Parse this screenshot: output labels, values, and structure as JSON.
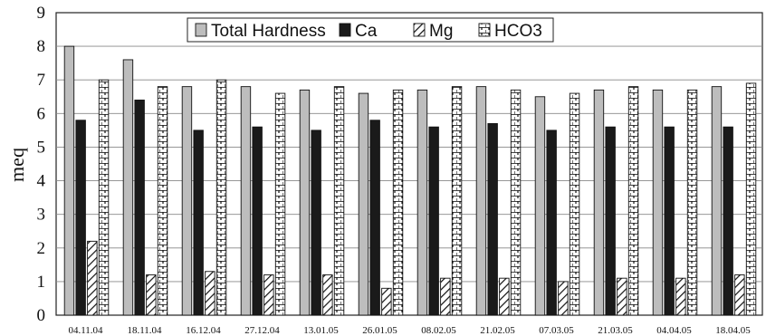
{
  "chart_data": {
    "type": "bar",
    "ylabel": "meq",
    "xlabel": "",
    "ylim": [
      0,
      9
    ],
    "yticks": [
      0,
      1,
      2,
      3,
      4,
      5,
      6,
      7,
      8,
      9
    ],
    "grid": "horizontal",
    "legend_position": "top-center",
    "categories": [
      "04.11.04",
      "18.11.04",
      "16.12.04",
      "27.12.04",
      "13.01.05",
      "26.01.05",
      "08.02.05",
      "21.02.05",
      "07.03.05",
      "21.03.05",
      "04.04.05",
      "18.04.05"
    ],
    "series": [
      {
        "name": "Total Hardness",
        "pattern": "solid-gray",
        "color": "#bdbdbd",
        "values": [
          8.0,
          7.6,
          6.8,
          6.8,
          6.7,
          6.6,
          6.7,
          6.8,
          6.5,
          6.7,
          6.7,
          6.8
        ]
      },
      {
        "name": "Ca",
        "pattern": "solid-dark",
        "color": "#1a1a1a",
        "values": [
          5.8,
          6.4,
          5.5,
          5.6,
          5.5,
          5.8,
          5.6,
          5.7,
          5.5,
          5.6,
          5.6,
          5.6
        ]
      },
      {
        "name": "Mg",
        "pattern": "diagonal-hatch",
        "color": "#ffffff",
        "values": [
          2.2,
          1.2,
          1.3,
          1.2,
          1.2,
          0.8,
          1.1,
          1.1,
          1.0,
          1.1,
          1.1,
          1.2
        ]
      },
      {
        "name": "HCO3",
        "pattern": "brick",
        "color": "#ffffff",
        "values": [
          7.0,
          6.8,
          7.0,
          6.6,
          6.8,
          6.7,
          6.8,
          6.7,
          6.6,
          6.8,
          6.7,
          6.9
        ]
      }
    ]
  }
}
